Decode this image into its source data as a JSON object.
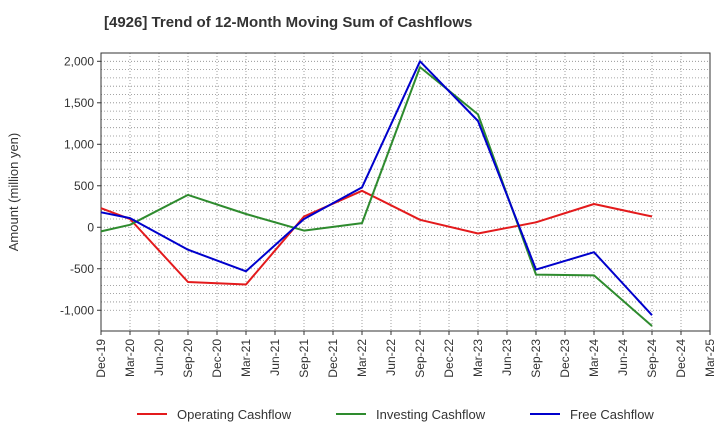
{
  "chart_data": {
    "type": "line",
    "title": "[4926]  Trend of 12-Month Moving Sum of Cashflows",
    "xlabel": "",
    "ylabel": "Amount (million yen)",
    "categories": [
      "Dec-19",
      "Mar-20",
      "Jun-20",
      "Sep-20",
      "Dec-20",
      "Mar-21",
      "Jun-21",
      "Sep-21",
      "Dec-21",
      "Mar-22",
      "Jun-22",
      "Sep-22",
      "Dec-22",
      "Mar-23",
      "Jun-23",
      "Sep-23",
      "Dec-23",
      "Mar-24",
      "Jun-24",
      "Sep-24",
      "Dec-24",
      "Mar-25"
    ],
    "ylim": [
      -1250,
      2100
    ],
    "yticks": [
      2000,
      1500,
      1000,
      500,
      0,
      -500,
      -1000
    ],
    "ytick_labels": [
      "2,000",
      "1,500",
      "1,000",
      "500",
      "0",
      "-500",
      "-1,000"
    ],
    "grid": true,
    "legend_position": "bottom",
    "series": [
      {
        "name": "Operating Cashflow",
        "color": "#e31a1c",
        "values": [
          230,
          100,
          null,
          -660,
          null,
          -690,
          null,
          130,
          null,
          440,
          null,
          90,
          null,
          -75,
          null,
          60,
          null,
          280,
          null,
          130,
          null,
          null
        ]
      },
      {
        "name": "Investing Cashflow",
        "color": "#2e8b2e",
        "values": [
          -50,
          30,
          null,
          390,
          null,
          160,
          null,
          -40,
          null,
          50,
          null,
          1930,
          null,
          1360,
          null,
          -570,
          null,
          -580,
          null,
          -1190,
          null,
          null
        ]
      },
      {
        "name": "Free Cashflow",
        "color": "#0000cc",
        "values": [
          180,
          110,
          null,
          -270,
          null,
          -530,
          null,
          100,
          null,
          480,
          null,
          2000,
          null,
          1280,
          null,
          -510,
          null,
          -300,
          null,
          -1060,
          null,
          null
        ]
      }
    ]
  }
}
